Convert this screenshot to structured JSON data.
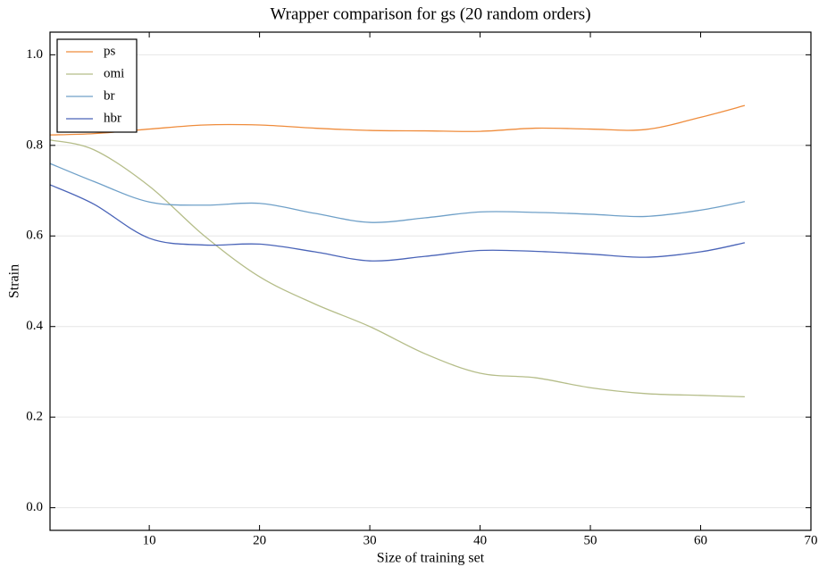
{
  "chart_data": {
    "type": "line",
    "title": "Wrapper comparison for gs (20 random orders)",
    "x_label": "Size of training set",
    "y_label": "Strain",
    "x": [
      1,
      5,
      10,
      15,
      20,
      25,
      30,
      35,
      40,
      45,
      50,
      55,
      60,
      64
    ],
    "series": [
      {
        "name": "ps",
        "color": "#ef8c3c",
        "values": [
          0.823,
          0.826,
          0.836,
          0.845,
          0.845,
          0.838,
          0.833,
          0.832,
          0.831,
          0.838,
          0.836,
          0.835,
          0.862,
          0.888
        ]
      },
      {
        "name": "omi",
        "color": "#b5bd89",
        "values": [
          0.812,
          0.79,
          0.71,
          0.6,
          0.51,
          0.45,
          0.4,
          0.34,
          0.297,
          0.287,
          0.265,
          0.252,
          0.248,
          0.245
        ]
      },
      {
        "name": "br",
        "color": "#6fa0c8",
        "values": [
          0.76,
          0.72,
          0.675,
          0.668,
          0.672,
          0.65,
          0.63,
          0.64,
          0.653,
          0.652,
          0.648,
          0.643,
          0.657,
          0.676
        ]
      },
      {
        "name": "hbr",
        "color": "#4a64b8",
        "values": [
          0.713,
          0.67,
          0.595,
          0.58,
          0.582,
          0.565,
          0.545,
          0.555,
          0.568,
          0.566,
          0.56,
          0.553,
          0.565,
          0.585
        ]
      }
    ],
    "xlim": [
      1,
      70
    ],
    "ylim": [
      -0.05,
      1.05
    ],
    "xticks": [
      10,
      20,
      30,
      40,
      50,
      60,
      70
    ],
    "yticks": [
      {
        "value": 0,
        "label": "0.0"
      },
      {
        "value": 0.2,
        "label": "0.2"
      },
      {
        "value": 0.4,
        "label": "0.4"
      },
      {
        "value": 0.6,
        "label": "0.6"
      },
      {
        "value": 0.8,
        "label": "0.8"
      },
      {
        "value": 1,
        "label": "1.0"
      }
    ],
    "grid": true,
    "legend": "upper-left"
  }
}
